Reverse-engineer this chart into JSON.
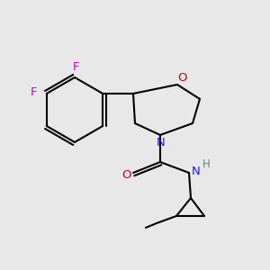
{
  "bg_color": "#e8e8e8",
  "atom_colors": {
    "C": "#000000",
    "N": "#1a1aff",
    "O": "#cc0000",
    "F": "#cc00cc",
    "H": "#558888"
  },
  "figsize": [
    3.0,
    3.0
  ],
  "dpi": 100,
  "lw": 1.5,
  "fontsize": 9.5
}
